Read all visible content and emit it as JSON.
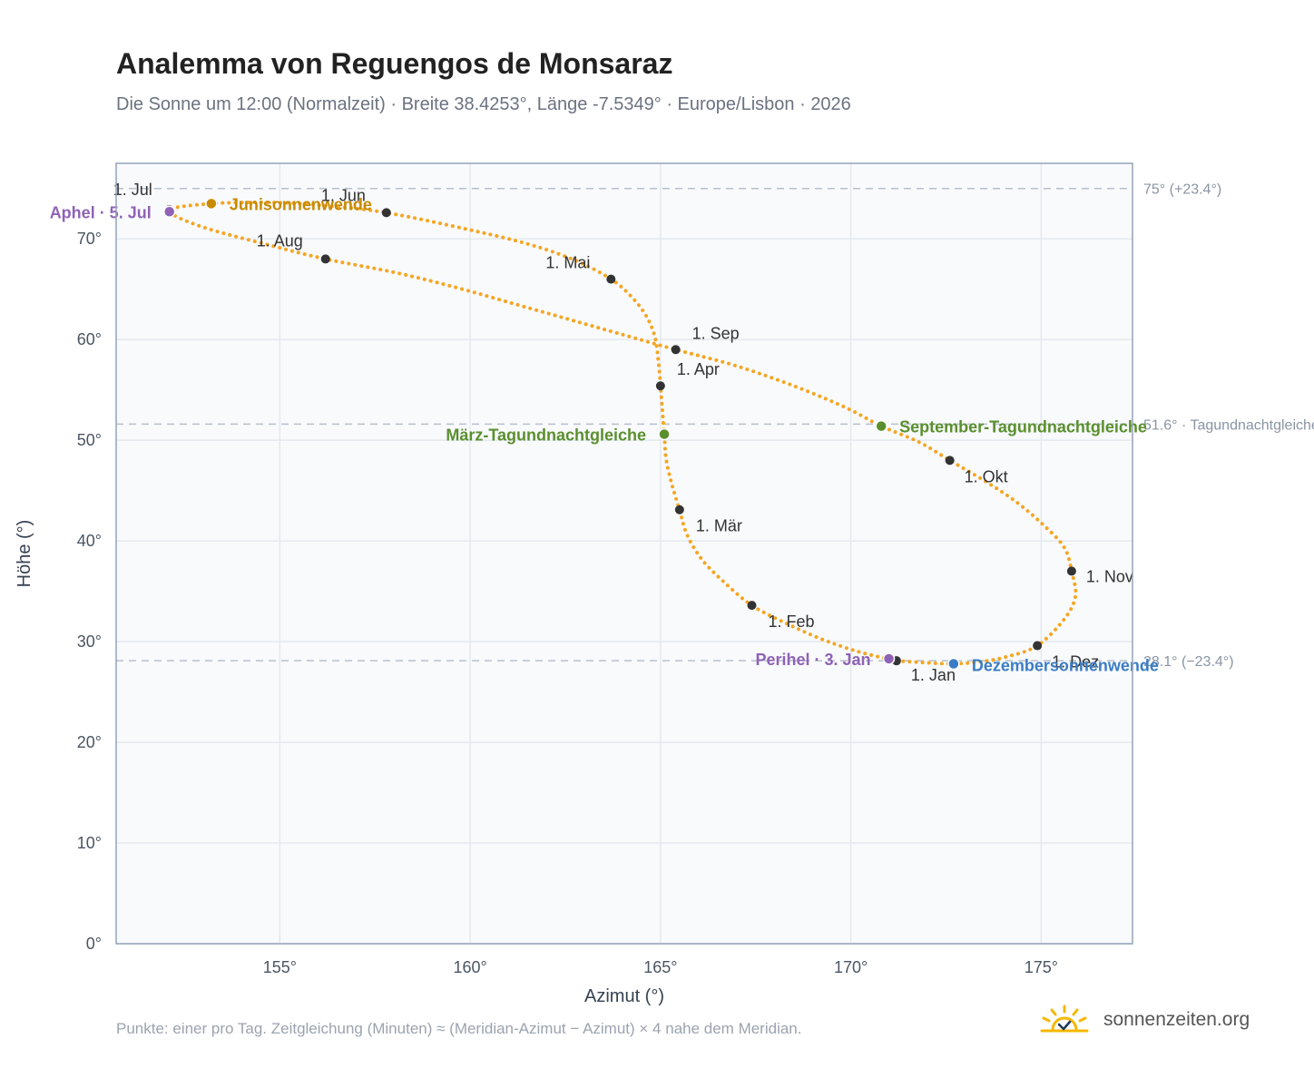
{
  "title": "Analemma von Reguengos de Monsaraz",
  "subtitle": "Die Sonne um 12:00 (Normalzeit) · Breite 38.4253°, Länge -7.5349° · Europe/Lisbon · 2026",
  "note": "Punkte: einer pro Tag. Zeitgleichung (Minuten) ≈ (Meridian-Azimut − Azimut) × 4 nahe dem Meridian.",
  "brand": {
    "name": "sonnenzeiten.org",
    "icon": "sun-check-icon"
  },
  "chart_data": {
    "type": "scatter",
    "xlabel": "Azimut (°)",
    "ylabel": "Höhe (°)",
    "xlim": [
      150.7,
      177.4
    ],
    "ylim": [
      0,
      77.5
    ],
    "x_ticks": [
      {
        "value": 155,
        "label": "155°"
      },
      {
        "value": 160,
        "label": "160°"
      },
      {
        "value": 165,
        "label": "165°"
      },
      {
        "value": 170,
        "label": "170°"
      },
      {
        "value": 175,
        "label": "175°"
      }
    ],
    "y_ticks": [
      {
        "value": 0,
        "label": "0°"
      },
      {
        "value": 10,
        "label": "10°"
      },
      {
        "value": 20,
        "label": "20°"
      },
      {
        "value": 30,
        "label": "30°"
      },
      {
        "value": 40,
        "label": "40°"
      },
      {
        "value": 50,
        "label": "50°"
      },
      {
        "value": 60,
        "label": "60°"
      },
      {
        "value": 70,
        "label": "70°"
      }
    ],
    "grid": true,
    "colors": {
      "path": "#f5a623",
      "month": "#333333",
      "equinox": "#5a8f2e",
      "summer": "#c78a00",
      "winter": "#3b7dc4",
      "apsis": "#8e63b5",
      "refline": "#b8c0cc"
    },
    "reference_lines": [
      {
        "value": 75.0,
        "label": "75° (+23.4°)"
      },
      {
        "value": 51.6,
        "label": "51.6° · Tagundnachtgleiche"
      },
      {
        "value": 28.1,
        "label": "28.1° (−23.4°)"
      }
    ],
    "months": [
      {
        "label": "1. Jan",
        "az": 171.2,
        "alt": 28.1
      },
      {
        "label": "1. Feb",
        "az": 167.4,
        "alt": 33.6
      },
      {
        "label": "1. Mär",
        "az": 165.5,
        "alt": 43.1
      },
      {
        "label": "1. Apr",
        "az": 165.0,
        "alt": 55.4
      },
      {
        "label": "1. Mai",
        "az": 163.7,
        "alt": 66.0
      },
      {
        "label": "1. Jun",
        "az": 157.8,
        "alt": 72.6
      },
      {
        "label": "1. Jul",
        "az": 152.1,
        "alt": 72.9
      },
      {
        "label": "1. Aug",
        "az": 156.2,
        "alt": 68.0
      },
      {
        "label": "1. Sep",
        "az": 165.4,
        "alt": 59.0
      },
      {
        "label": "1. Okt",
        "az": 172.6,
        "alt": 48.0
      },
      {
        "label": "1. Nov",
        "az": 175.8,
        "alt": 37.0
      },
      {
        "label": "1. Dez",
        "az": 174.9,
        "alt": 29.6
      }
    ],
    "events": [
      {
        "label": "Junisonnenwende",
        "az": 153.2,
        "alt": 73.5,
        "kind": "summer"
      },
      {
        "label": "Aphel · 5. Jul",
        "az": 152.1,
        "alt": 72.7,
        "kind": "apsis"
      },
      {
        "label": "März-Tagundnachtgleiche",
        "az": 165.1,
        "alt": 50.6,
        "kind": "equinox"
      },
      {
        "label": "September-Tagundnachtgleiche",
        "az": 170.8,
        "alt": 51.4,
        "kind": "equinox"
      },
      {
        "label": "Perihel · 3. Jan",
        "az": 171.0,
        "alt": 28.3,
        "kind": "apsis"
      },
      {
        "label": "Dezembersonnenwende",
        "az": 172.7,
        "alt": 27.8,
        "kind": "winter"
      }
    ],
    "path": [
      [
        171.2,
        28.1
      ],
      [
        170.2,
        29.0
      ],
      [
        169.2,
        30.3
      ],
      [
        168.2,
        32.0
      ],
      [
        167.4,
        33.6
      ],
      [
        166.7,
        35.8
      ],
      [
        166.1,
        38.1
      ],
      [
        165.7,
        40.6
      ],
      [
        165.5,
        43.1
      ],
      [
        165.3,
        45.6
      ],
      [
        165.15,
        48.1
      ],
      [
        165.1,
        50.6
      ],
      [
        165.05,
        53.0
      ],
      [
        165.0,
        55.4
      ],
      [
        164.95,
        57.6
      ],
      [
        164.85,
        60.3
      ],
      [
        164.6,
        62.5
      ],
      [
        164.2,
        64.4
      ],
      [
        163.7,
        66.0
      ],
      [
        162.8,
        67.8
      ],
      [
        161.6,
        69.4
      ],
      [
        160.1,
        70.8
      ],
      [
        157.8,
        72.6
      ],
      [
        156.2,
        73.3
      ],
      [
        155.0,
        73.6
      ],
      [
        153.9,
        73.6
      ],
      [
        153.2,
        73.5
      ],
      [
        152.4,
        73.2
      ],
      [
        152.1,
        72.9
      ],
      [
        152.1,
        72.7
      ],
      [
        152.4,
        72.0
      ],
      [
        153.2,
        70.9
      ],
      [
        154.6,
        69.5
      ],
      [
        156.2,
        68.0
      ],
      [
        158.1,
        66.6
      ],
      [
        159.7,
        65.1
      ],
      [
        161.2,
        63.5
      ],
      [
        162.6,
        62.0
      ],
      [
        163.9,
        60.6
      ],
      [
        165.4,
        59.0
      ],
      [
        166.8,
        57.6
      ],
      [
        168.0,
        56.1
      ],
      [
        169.1,
        54.5
      ],
      [
        170.0,
        53.0
      ],
      [
        170.8,
        51.4
      ],
      [
        171.8,
        49.8
      ],
      [
        172.6,
        48.0
      ],
      [
        173.5,
        46.0
      ],
      [
        174.3,
        44.0
      ],
      [
        175.0,
        41.8
      ],
      [
        175.6,
        39.4
      ],
      [
        175.8,
        37.0
      ],
      [
        175.9,
        34.5
      ],
      [
        175.6,
        32.2
      ],
      [
        174.9,
        29.6
      ],
      [
        174.1,
        28.5
      ],
      [
        173.4,
        28.0
      ],
      [
        172.7,
        27.8
      ],
      [
        172.0,
        27.9
      ],
      [
        171.2,
        28.1
      ]
    ]
  }
}
